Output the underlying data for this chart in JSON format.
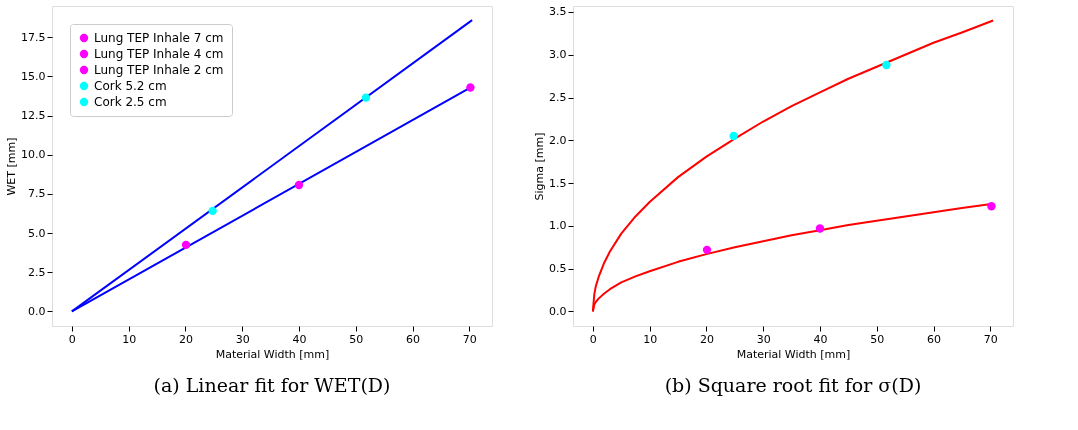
{
  "chart_data": [
    {
      "type": "scatter",
      "title": "(a) Linear fit for WET(D)",
      "xlabel": "Material Width [mm]",
      "ylabel": "WET [mm]",
      "xlim": [
        -3.5,
        74.0
      ],
      "ylim": [
        -0.93,
        19.5
      ],
      "xticks": [
        0,
        10,
        20,
        30,
        40,
        50,
        60,
        70
      ],
      "yticks": [
        {
          "value": 0,
          "label": "0.0"
        },
        {
          "value": 2.5,
          "label": "2.5"
        },
        {
          "value": 5,
          "label": "5.0"
        },
        {
          "value": 7.5,
          "label": "7.5"
        },
        {
          "value": 10,
          "label": "10.0"
        },
        {
          "value": 12.5,
          "label": "12.5"
        },
        {
          "value": 15,
          "label": "15.0"
        },
        {
          "value": 17.5,
          "label": "17.5"
        }
      ],
      "grid": false,
      "legend": "top left",
      "marker": "circle",
      "series": [
        {
          "type": "line",
          "color": "#0000ff",
          "marker": "none",
          "x": [
            0,
            70.5
          ],
          "values": [
            0,
            18.6
          ]
        },
        {
          "type": "line",
          "color": "#0000ff",
          "marker": "none",
          "x": [
            0,
            70.5
          ],
          "values": [
            0,
            14.35
          ]
        },
        {
          "name": "Lung TEP Inhale 7 cm",
          "color": "#ff00ff",
          "x": [
            70.2
          ],
          "values": [
            14.3
          ]
        },
        {
          "name": "Lung TEP Inhale 4 cm",
          "color": "#ff00ff",
          "x": [
            40
          ],
          "values": [
            8.07
          ]
        },
        {
          "name": "Lung TEP Inhale 2 cm",
          "color": "#ff00ff",
          "x": [
            20.1
          ],
          "values": [
            4.25
          ]
        },
        {
          "name": "Cork 5.2 cm",
          "color": "#00ffff",
          "x": [
            51.8
          ],
          "values": [
            13.65
          ]
        },
        {
          "name": "Cork 2.5 cm",
          "color": "#00ffff",
          "x": [
            24.8
          ],
          "values": [
            6.42
          ]
        }
      ]
    },
    {
      "type": "scatter",
      "title": "(b) Square root fit for σ(D)",
      "xlabel": "Material Width [mm]",
      "ylabel": "Sigma [mm]",
      "xlim": [
        -3.5,
        74.0
      ],
      "ylim": [
        -0.17,
        3.57
      ],
      "xticks": [
        0,
        10,
        20,
        30,
        40,
        50,
        60,
        70
      ],
      "yticks": [
        {
          "value": 0,
          "label": "0.0"
        },
        {
          "value": 0.5,
          "label": "0.5"
        },
        {
          "value": 1,
          "label": "1.0"
        },
        {
          "value": 1.5,
          "label": "1.5"
        },
        {
          "value": 2,
          "label": "2.0"
        },
        {
          "value": 2.5,
          "label": "2.5"
        },
        {
          "value": 3,
          "label": "3.0"
        },
        {
          "value": 3.5,
          "label": "3.5"
        }
      ],
      "grid": false,
      "legend": "top left",
      "marker": "circle",
      "series": [
        {
          "type": "line",
          "color": "#ff0000",
          "marker": "none",
          "x": [
            0,
            0.25,
            0.5,
            1,
            2,
            3,
            5,
            7.5,
            10,
            15,
            20,
            25,
            30,
            35,
            40,
            45,
            50,
            55,
            60,
            65,
            70.5
          ],
          "values": [
            0,
            0.2,
            0.29,
            0.4,
            0.57,
            0.7,
            0.91,
            1.11,
            1.28,
            1.57,
            1.81,
            2.02,
            2.22,
            2.4,
            2.56,
            2.72,
            2.86,
            3.0,
            3.14,
            3.26,
            3.4
          ]
        },
        {
          "type": "line",
          "color": "#ff0000",
          "marker": "none",
          "x": [
            0,
            0.25,
            0.5,
            1,
            2,
            3,
            5,
            7.5,
            10,
            15,
            20,
            25,
            30,
            35,
            40,
            45,
            50,
            55,
            60,
            65,
            70.5
          ],
          "values": [
            0,
            0.08,
            0.11,
            0.15,
            0.21,
            0.26,
            0.34,
            0.41,
            0.47,
            0.58,
            0.67,
            0.75,
            0.82,
            0.89,
            0.95,
            1.01,
            1.06,
            1.11,
            1.16,
            1.21,
            1.26
          ]
        },
        {
          "name": "Lung TEP Inhale 7 cm",
          "color": "#ff00ff",
          "x": [
            70.2
          ],
          "values": [
            1.23
          ]
        },
        {
          "name": "Lung TEP Inhale 4 cm",
          "color": "#ff00ff",
          "x": [
            40
          ],
          "values": [
            0.97
          ]
        },
        {
          "name": "Lung TEP Inhale 2 cm",
          "color": "#ff00ff",
          "x": [
            20.1
          ],
          "values": [
            0.72
          ]
        },
        {
          "name": "Cork 5.2 cm",
          "color": "#00ffff",
          "x": [
            51.7
          ],
          "values": [
            2.88
          ]
        },
        {
          "name": "Cork 2.5 cm",
          "color": "#00ffff",
          "x": [
            24.8
          ],
          "values": [
            2.05
          ]
        }
      ]
    }
  ]
}
